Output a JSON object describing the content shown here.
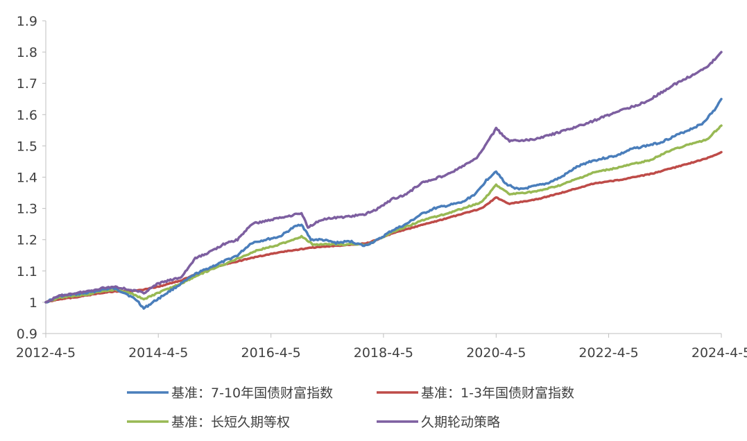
{
  "chart_data": {
    "type": "line",
    "title": "",
    "xlabel": "",
    "ylabel": "",
    "x_range": [
      "2012-04-05",
      "2024-04-05"
    ],
    "ylim": [
      0.9,
      1.9
    ],
    "y_ticks": [
      "0.9",
      "1",
      "1.1",
      "1.2",
      "1.3",
      "1.4",
      "1.5",
      "1.6",
      "1.7",
      "1.8",
      "1.9"
    ],
    "x_ticks": [
      "2012-4-5",
      "2014-4-5",
      "2016-4-5",
      "2018-4-5",
      "2020-4-5",
      "2022-4-5",
      "2024-4-5"
    ],
    "grid": false,
    "legend_position": "bottom",
    "series": [
      {
        "name": "基准：7-10年国债财富指数",
        "color": "#4a7ebb",
        "points": [
          [
            "2012-04-05",
            1.0
          ],
          [
            "2012-07-01",
            1.02
          ],
          [
            "2012-10-01",
            1.025
          ],
          [
            "2013-01-01",
            1.03
          ],
          [
            "2013-04-01",
            1.04
          ],
          [
            "2013-06-15",
            1.045
          ],
          [
            "2013-09-01",
            1.03
          ],
          [
            "2013-11-20",
            1.005
          ],
          [
            "2014-01-01",
            0.98
          ],
          [
            "2014-03-01",
            1.0
          ],
          [
            "2014-06-01",
            1.03
          ],
          [
            "2014-09-01",
            1.06
          ],
          [
            "2014-12-01",
            1.09
          ],
          [
            "2015-03-01",
            1.11
          ],
          [
            "2015-06-01",
            1.13
          ],
          [
            "2015-09-01",
            1.15
          ],
          [
            "2015-12-01",
            1.19
          ],
          [
            "2016-03-01",
            1.2
          ],
          [
            "2016-06-01",
            1.21
          ],
          [
            "2016-09-01",
            1.24
          ],
          [
            "2016-10-20",
            1.25
          ],
          [
            "2016-12-20",
            1.2
          ],
          [
            "2017-03-01",
            1.2
          ],
          [
            "2017-06-01",
            1.19
          ],
          [
            "2017-09-01",
            1.195
          ],
          [
            "2017-12-01",
            1.18
          ],
          [
            "2018-03-01",
            1.2
          ],
          [
            "2018-06-01",
            1.23
          ],
          [
            "2018-09-01",
            1.25
          ],
          [
            "2018-12-01",
            1.28
          ],
          [
            "2019-03-01",
            1.3
          ],
          [
            "2019-06-01",
            1.31
          ],
          [
            "2019-09-01",
            1.32
          ],
          [
            "2019-12-01",
            1.35
          ],
          [
            "2020-02-01",
            1.39
          ],
          [
            "2020-04-05",
            1.42
          ],
          [
            "2020-06-01",
            1.38
          ],
          [
            "2020-09-01",
            1.36
          ],
          [
            "2020-12-01",
            1.37
          ],
          [
            "2021-03-01",
            1.38
          ],
          [
            "2021-06-01",
            1.4
          ],
          [
            "2021-09-01",
            1.43
          ],
          [
            "2021-12-01",
            1.45
          ],
          [
            "2022-03-01",
            1.46
          ],
          [
            "2022-06-01",
            1.47
          ],
          [
            "2022-09-01",
            1.49
          ],
          [
            "2022-12-01",
            1.5
          ],
          [
            "2023-03-01",
            1.51
          ],
          [
            "2023-06-01",
            1.53
          ],
          [
            "2023-09-01",
            1.55
          ],
          [
            "2023-12-01",
            1.57
          ],
          [
            "2024-03-01",
            1.62
          ],
          [
            "2024-04-05",
            1.65
          ]
        ]
      },
      {
        "name": "基准：1-3年国债财富指数",
        "color": "#be4b48",
        "points": [
          [
            "2012-04-05",
            1.0
          ],
          [
            "2012-07-01",
            1.01
          ],
          [
            "2012-10-01",
            1.015
          ],
          [
            "2013-01-01",
            1.022
          ],
          [
            "2013-04-01",
            1.03
          ],
          [
            "2013-07-01",
            1.035
          ],
          [
            "2013-10-01",
            1.035
          ],
          [
            "2014-01-01",
            1.04
          ],
          [
            "2014-04-05",
            1.05
          ],
          [
            "2014-09-01",
            1.07
          ],
          [
            "2015-01-01",
            1.095
          ],
          [
            "2015-06-01",
            1.12
          ],
          [
            "2016-01-01",
            1.145
          ],
          [
            "2016-06-01",
            1.16
          ],
          [
            "2017-01-01",
            1.175
          ],
          [
            "2017-06-01",
            1.18
          ],
          [
            "2018-01-01",
            1.19
          ],
          [
            "2018-06-01",
            1.22
          ],
          [
            "2019-01-01",
            1.25
          ],
          [
            "2019-06-01",
            1.27
          ],
          [
            "2020-01-01",
            1.3
          ],
          [
            "2020-04-05",
            1.335
          ],
          [
            "2020-07-01",
            1.315
          ],
          [
            "2021-01-01",
            1.33
          ],
          [
            "2021-06-01",
            1.35
          ],
          [
            "2022-01-01",
            1.38
          ],
          [
            "2022-06-01",
            1.39
          ],
          [
            "2023-01-01",
            1.41
          ],
          [
            "2023-06-01",
            1.43
          ],
          [
            "2024-01-01",
            1.46
          ],
          [
            "2024-04-05",
            1.48
          ]
        ]
      },
      {
        "name": "基准：长短久期等权",
        "color": "#98b954",
        "points": [
          [
            "2012-04-05",
            1.0
          ],
          [
            "2012-07-01",
            1.015
          ],
          [
            "2012-10-01",
            1.02
          ],
          [
            "2013-01-01",
            1.025
          ],
          [
            "2013-04-01",
            1.035
          ],
          [
            "2013-07-01",
            1.04
          ],
          [
            "2013-10-01",
            1.03
          ],
          [
            "2014-01-01",
            1.01
          ],
          [
            "2014-04-05",
            1.03
          ],
          [
            "2014-09-01",
            1.06
          ],
          [
            "2015-01-01",
            1.09
          ],
          [
            "2015-06-01",
            1.12
          ],
          [
            "2016-01-01",
            1.165
          ],
          [
            "2016-06-01",
            1.185
          ],
          [
            "2016-10-20",
            1.21
          ],
          [
            "2017-01-01",
            1.185
          ],
          [
            "2017-06-01",
            1.185
          ],
          [
            "2018-01-01",
            1.185
          ],
          [
            "2018-06-01",
            1.225
          ],
          [
            "2019-01-01",
            1.265
          ],
          [
            "2019-06-01",
            1.285
          ],
          [
            "2020-01-01",
            1.32
          ],
          [
            "2020-04-05",
            1.375
          ],
          [
            "2020-07-01",
            1.345
          ],
          [
            "2021-01-01",
            1.355
          ],
          [
            "2021-06-01",
            1.375
          ],
          [
            "2022-01-01",
            1.415
          ],
          [
            "2022-06-01",
            1.43
          ],
          [
            "2023-01-01",
            1.455
          ],
          [
            "2023-06-01",
            1.49
          ],
          [
            "2024-01-01",
            1.52
          ],
          [
            "2024-04-05",
            1.565
          ]
        ]
      },
      {
        "name": "久期轮动策略",
        "color": "#7d5fa0",
        "points": [
          [
            "2012-04-05",
            1.0
          ],
          [
            "2012-07-01",
            1.02
          ],
          [
            "2012-10-01",
            1.028
          ],
          [
            "2013-01-01",
            1.035
          ],
          [
            "2013-04-01",
            1.045
          ],
          [
            "2013-07-01",
            1.05
          ],
          [
            "2013-10-01",
            1.04
          ],
          [
            "2014-01-01",
            1.03
          ],
          [
            "2014-04-05",
            1.06
          ],
          [
            "2014-09-01",
            1.08
          ],
          [
            "2014-12-01",
            1.14
          ],
          [
            "2015-03-01",
            1.16
          ],
          [
            "2015-06-01",
            1.185
          ],
          [
            "2015-09-01",
            1.2
          ],
          [
            "2015-12-01",
            1.25
          ],
          [
            "2016-06-01",
            1.27
          ],
          [
            "2016-10-20",
            1.285
          ],
          [
            "2016-12-01",
            1.24
          ],
          [
            "2017-03-01",
            1.265
          ],
          [
            "2017-06-01",
            1.27
          ],
          [
            "2017-12-01",
            1.28
          ],
          [
            "2018-03-01",
            1.3
          ],
          [
            "2018-06-01",
            1.33
          ],
          [
            "2018-09-01",
            1.345
          ],
          [
            "2018-12-01",
            1.38
          ],
          [
            "2019-06-01",
            1.41
          ],
          [
            "2019-12-01",
            1.46
          ],
          [
            "2020-04-05",
            1.555
          ],
          [
            "2020-07-01",
            1.515
          ],
          [
            "2020-12-01",
            1.52
          ],
          [
            "2021-06-01",
            1.545
          ],
          [
            "2021-12-01",
            1.575
          ],
          [
            "2022-06-01",
            1.61
          ],
          [
            "2022-12-01",
            1.64
          ],
          [
            "2023-06-01",
            1.695
          ],
          [
            "2024-01-01",
            1.75
          ],
          [
            "2024-04-05",
            1.8
          ]
        ]
      }
    ]
  }
}
